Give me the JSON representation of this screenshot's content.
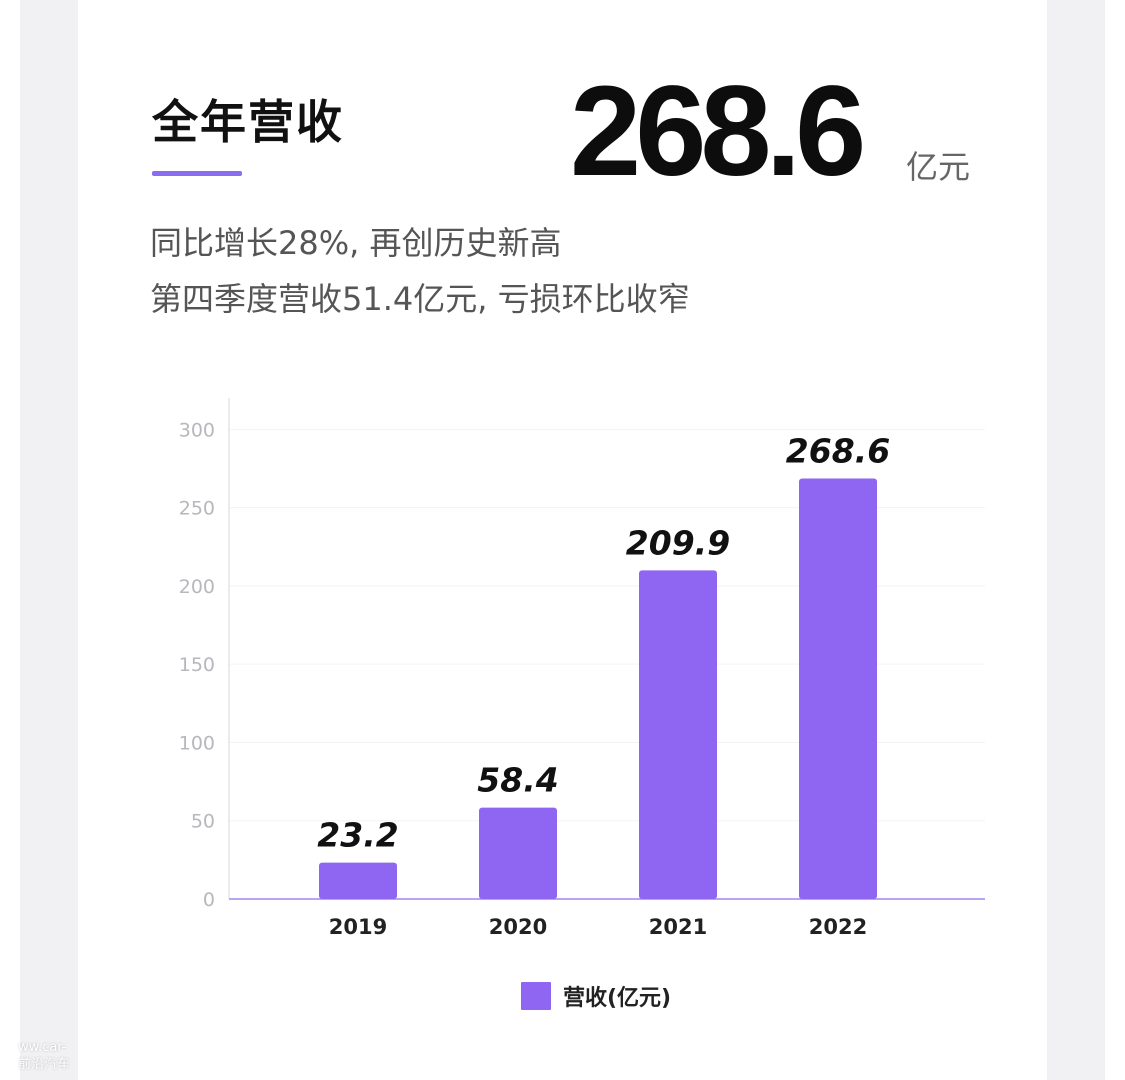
{
  "headline": {
    "title": "全年营收",
    "value": "268.6",
    "unit": "亿元",
    "line1": "同比增长28%, 再创历史新高",
    "line2": "第四季度营收51.4亿元, 亏损环比收窄"
  },
  "colors": {
    "accent": "#8a6cf0",
    "bar": "#8f66f1"
  },
  "chart_data": {
    "type": "bar",
    "categories": [
      "2019",
      "2020",
      "2021",
      "2022"
    ],
    "series": [
      {
        "name": "营收(亿元)",
        "values": [
          23.2,
          58.4,
          209.9,
          268.6
        ]
      }
    ],
    "value_labels": [
      "23.2",
      "58.4",
      "209.9",
      "268.6"
    ],
    "y_ticks": [
      "0",
      "50",
      "100",
      "150",
      "200",
      "250",
      "300"
    ],
    "ylim": [
      0,
      320
    ],
    "grid": true,
    "legend_position": "bottom-center"
  },
  "legend": {
    "label": "营收(亿元)"
  },
  "watermark": {
    "line1": "ww.car-",
    "line2": "前沿汽车"
  }
}
